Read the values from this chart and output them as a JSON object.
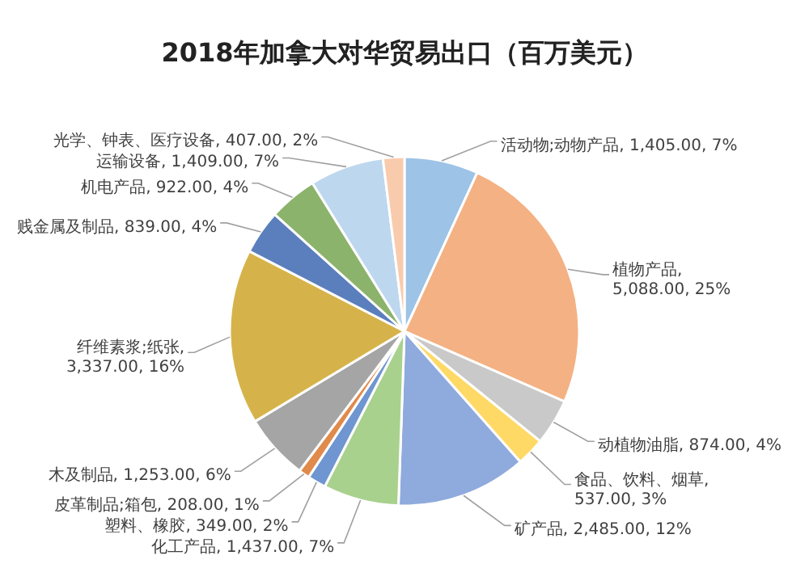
{
  "chart_data": {
    "type": "pie",
    "title": "2018年加拿大对华贸易出口（百万美元）",
    "categories": [
      "活动物;动物产品",
      "植物产品",
      "动植物油脂",
      "食品、饮料、烟草",
      "矿产品",
      "化工产品",
      "塑料、橡胶",
      "皮革制品;箱包",
      "木及制品",
      "纤维素浆;纸张",
      "贱金属及制品",
      "机电产品",
      "运输设备",
      "光学、钟表、医疗设备"
    ],
    "values": [
      1405,
      5088,
      874,
      537,
      2485,
      1437,
      349,
      208,
      1253,
      3337,
      839,
      922,
      1409,
      407
    ],
    "value_labels": [
      ", 1,405.00, 7%",
      ", 5,088.00, 25%",
      ", 874.00, 4%",
      ", 537.00, 3%",
      ", 2,485.00, 12%",
      ", 1,437.00, 7%",
      ", 349.00, 2%",
      ", 208.00, 1%",
      ", 1,253.00, 6%",
      ", 3,337.00, 16%",
      ", 839.00, 4%",
      ", 922.00, 4%",
      ", 1,409.00, 7%",
      ", 407.00, 2%"
    ],
    "colors": [
      "#9dc3e6",
      "#f4b183",
      "#c9c9c9",
      "#ffd966",
      "#8faadc",
      "#a9d18e",
      "#6f96d0",
      "#e08a4c",
      "#a5a5a5",
      "#d6b34a",
      "#5b7fbd",
      "#8cb36b",
      "#bdd7ee",
      "#f8cbad"
    ]
  }
}
